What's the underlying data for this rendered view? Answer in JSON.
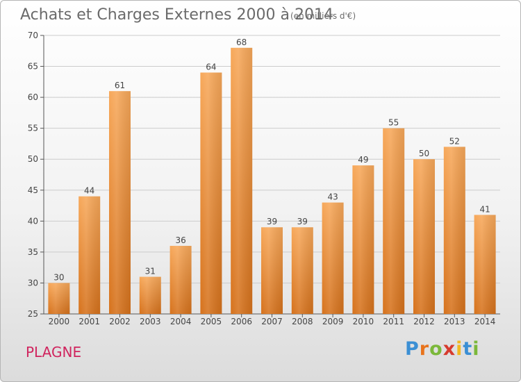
{
  "header": {
    "title": "Achats et Charges Externes 2000 à 2014",
    "subtitle": "(en milliers d'€)"
  },
  "footer": {
    "commune": "PLAGNE",
    "logo_letters": [
      "P",
      "r",
      "o",
      "x",
      "i",
      "t",
      "i"
    ],
    "logo_colors": [
      "#3b8fd4",
      "#e8731c",
      "#7bb83a",
      "#d63b2e",
      "#f2b820",
      "#3b8fd4",
      "#7bb83a"
    ]
  },
  "colors": {
    "bar_top": "#f7a85a",
    "bar_bottom": "#d6721c",
    "axis": "#555555",
    "grid": "#cccccc",
    "text": "#444444"
  },
  "chart_data": {
    "type": "bar",
    "title": "Achats et Charges Externes 2000 à 2014",
    "xlabel": "",
    "ylabel": "",
    "ylim": [
      25,
      70
    ],
    "yticks": [
      25,
      30,
      35,
      40,
      45,
      50,
      55,
      60,
      65,
      70
    ],
    "grid": true,
    "categories": [
      "2000",
      "2001",
      "2002",
      "2003",
      "2004",
      "2005",
      "2006",
      "2007",
      "2008",
      "2009",
      "2010",
      "2011",
      "2012",
      "2013",
      "2014"
    ],
    "values": [
      30,
      44,
      61,
      31,
      36,
      64,
      68,
      39,
      39,
      43,
      49,
      55,
      50,
      52,
      41
    ],
    "data_labels": [
      "30",
      "44",
      "61",
      "31",
      "36",
      "64",
      "68",
      "39",
      "39",
      "43",
      "49",
      "55",
      "50",
      "52",
      "41"
    ]
  }
}
